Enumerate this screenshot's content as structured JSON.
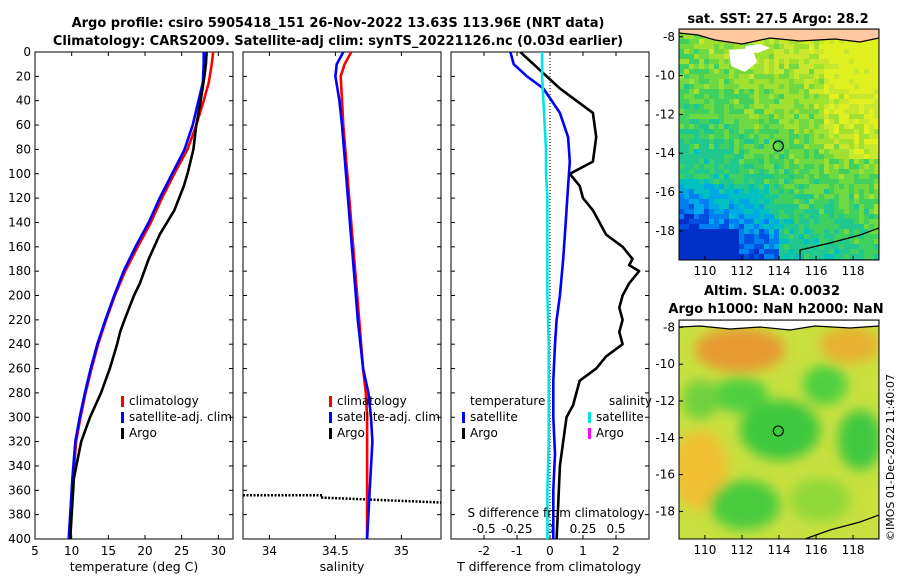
{
  "colors": {
    "climatology": "#ff0000",
    "satellite": "#0000ff",
    "argo": "#000000",
    "salinity_satellite": "#00e5e5",
    "salinity_argo": "#ff00ff",
    "land": "#ffc8a0"
  },
  "header": {
    "title_line1": "Argo profile: csiro 5905418_151 26-Nov-2022 13.63S 113.96E (NRT data)",
    "title_line2": "Climatology: CARS2009. Satellite-adj clim: synTS_20221126.nc (0.03d earlier)"
  },
  "chart_data": [
    {
      "type": "line",
      "id": "temperature-profile",
      "xlabel": "temperature (deg C)",
      "ylabel": "",
      "xlim": [
        5,
        32
      ],
      "ylim": [
        400,
        0
      ],
      "xticks": [
        5,
        10,
        15,
        20,
        25,
        30
      ],
      "yticks": [
        0,
        20,
        40,
        60,
        80,
        100,
        120,
        140,
        160,
        180,
        200,
        220,
        240,
        260,
        280,
        300,
        320,
        340,
        360,
        380,
        400
      ],
      "legend": [
        "climatology",
        "satellite-adj. clim",
        "Argo"
      ],
      "legend_position": "lower-right",
      "series": [
        {
          "name": "climatology",
          "color": "#ff0000",
          "x": [
            29.3,
            29.1,
            28.7,
            28.0,
            27.0,
            25.8,
            24.0,
            22.3,
            20.8,
            19.0,
            17.3,
            15.9,
            14.7,
            13.6,
            12.7,
            11.9,
            11.2,
            10.6,
            10.2,
            9.8
          ],
          "y": [
            0,
            10,
            25,
            40,
            60,
            80,
            100,
            120,
            140,
            160,
            180,
            200,
            220,
            240,
            260,
            280,
            300,
            320,
            350,
            400
          ]
        },
        {
          "name": "satellite-adj. clim",
          "color": "#0000ff",
          "x": [
            28.0,
            28.0,
            27.9,
            27.3,
            26.5,
            25.4,
            23.7,
            22.0,
            20.5,
            18.7,
            17.1,
            15.8,
            14.6,
            13.5,
            12.6,
            11.8,
            11.1,
            10.5,
            10.1,
            9.6
          ],
          "y": [
            0,
            10,
            25,
            40,
            60,
            80,
            100,
            120,
            140,
            160,
            180,
            200,
            220,
            240,
            260,
            280,
            300,
            320,
            350,
            400
          ]
        },
        {
          "name": "Argo",
          "color": "#000000",
          "x": [
            28.4,
            28.3,
            28.1,
            27.6,
            27.0,
            26.6,
            25.8,
            25.3,
            24.0,
            22.0,
            20.5,
            19.3,
            18.5,
            17.2,
            16.6,
            16.2,
            15.2,
            14.0,
            12.5,
            11.3,
            10.3,
            9.8
          ],
          "y": [
            0,
            10,
            20,
            40,
            60,
            80,
            100,
            110,
            130,
            150,
            170,
            190,
            200,
            220,
            230,
            240,
            260,
            280,
            300,
            320,
            350,
            400
          ]
        }
      ]
    },
    {
      "type": "line",
      "id": "salinity-profile",
      "xlabel": "salinity",
      "xlim": [
        33.8,
        35.3
      ],
      "ylim": [
        400,
        0
      ],
      "xticks": [
        34,
        34.5,
        35
      ],
      "legend": [
        "climatology",
        "satellite-adj. clim",
        "Argo"
      ],
      "legend_position": "lower-right",
      "series": [
        {
          "name": "climatology",
          "color": "#ff0000",
          "x": [
            34.62,
            34.57,
            34.54,
            34.55,
            34.56,
            34.59,
            34.62,
            34.65,
            34.68,
            34.71,
            34.73,
            34.74,
            34.74,
            34.74,
            34.74
          ],
          "y": [
            0,
            10,
            20,
            40,
            60,
            100,
            140,
            180,
            220,
            260,
            280,
            300,
            320,
            360,
            400
          ]
        },
        {
          "name": "satellite-adj. clim",
          "color": "#0000ff",
          "x": [
            34.56,
            34.51,
            34.5,
            34.53,
            34.55,
            34.58,
            34.61,
            34.64,
            34.67,
            34.71,
            34.75,
            34.77,
            34.78,
            34.76,
            34.74
          ],
          "y": [
            0,
            10,
            20,
            40,
            60,
            100,
            140,
            180,
            220,
            260,
            280,
            300,
            320,
            360,
            400
          ]
        },
        {
          "name": "Argo",
          "color": "#000000",
          "x": [],
          "y": []
        }
      ],
      "annotations": [
        {
          "type": "dotted-line",
          "x": [
            33.8,
            34.4,
            34.4,
            35.3
          ],
          "y": [
            364,
            364,
            366,
            370
          ]
        }
      ]
    },
    {
      "type": "line",
      "id": "difference-profile",
      "xlabel": "T difference from climatology",
      "xlim": [
        -3,
        3
      ],
      "ylim": [
        400,
        0
      ],
      "xticks": [
        -2,
        -1,
        0,
        1,
        2
      ],
      "secondary_xlabel": "S difference from climatology",
      "secondary_xticks": [
        -0.5,
        -0.25,
        0,
        0.25,
        0.5
      ],
      "legend_left_title": "temperature",
      "legend_right_title": "salinity",
      "legend_left": [
        "satellite",
        "Argo"
      ],
      "legend_right": [
        "satellite",
        "Argo"
      ],
      "series": [
        {
          "name": "temperature satellite",
          "color": "#0000ff",
          "x": [
            -1.2,
            -1.1,
            -0.7,
            -0.2,
            0.3,
            0.55,
            0.6,
            0.55,
            0.5,
            0.45,
            0.4,
            0.3,
            0.2,
            0.15,
            0.1,
            0.1,
            0.15,
            0.1,
            0.1
          ],
          "y": [
            0,
            10,
            20,
            30,
            50,
            70,
            90,
            110,
            130,
            150,
            170,
            200,
            220,
            240,
            270,
            300,
            330,
            360,
            400
          ]
        },
        {
          "name": "temperature Argo",
          "color": "#000000",
          "x": [
            -0.9,
            -0.5,
            -0.1,
            0.3,
            0.8,
            1.3,
            1.4,
            1.3,
            0.6,
            0.9,
            1.0,
            1.3,
            1.5,
            1.7,
            2.2,
            2.5,
            2.4,
            2.7,
            2.4,
            2.2,
            2.1,
            2.2,
            2.1,
            2.2,
            1.7,
            1.4,
            0.9,
            0.8,
            0.7,
            0.5,
            0.4,
            0.3,
            0.25,
            0.2
          ],
          "y": [
            0,
            10,
            20,
            30,
            40,
            50,
            70,
            90,
            100,
            110,
            120,
            130,
            140,
            150,
            160,
            170,
            175,
            180,
            190,
            200,
            210,
            220,
            230,
            240,
            250,
            260,
            270,
            280,
            290,
            300,
            320,
            340,
            370,
            400
          ]
        },
        {
          "name": "salinity satellite",
          "color": "#00e5e5",
          "x": [
            -0.06,
            -0.06,
            -0.05,
            -0.04,
            -0.03,
            -0.03,
            -0.02,
            -0.02,
            -0.02,
            -0.02,
            -0.02,
            -0.01,
            -0.01,
            -0.01,
            -0.01,
            -0.02,
            -0.02,
            -0.02
          ],
          "y": [
            0,
            20,
            40,
            60,
            80,
            100,
            120,
            140,
            160,
            180,
            200,
            240,
            280,
            300,
            320,
            360,
            380,
            400
          ]
        },
        {
          "name": "salinity Argo",
          "color": "#ff00ff",
          "x": [],
          "y": []
        }
      ]
    }
  ],
  "maps": {
    "sst": {
      "title": "sat. SST: 27.5 Argo: 28.2",
      "xticks": [
        110,
        112,
        114,
        116,
        118
      ],
      "yticks": [
        -8,
        -10,
        -12,
        -14,
        -16,
        -18
      ],
      "marker": {
        "lon": 113.96,
        "lat": -13.63
      }
    },
    "sla": {
      "title_line1": "Altim. SLA: 0.0032",
      "title_line2": "Argo h1000: NaN h2000: NaN",
      "xticks": [
        110,
        112,
        114,
        116,
        118
      ],
      "yticks": [
        -8,
        -10,
        -12,
        -14,
        -16,
        -18
      ],
      "marker": {
        "lon": 113.96,
        "lat": -13.63
      }
    }
  },
  "footer": {
    "credit": "©IMOS 01-Dec-2022 11:40:07"
  }
}
